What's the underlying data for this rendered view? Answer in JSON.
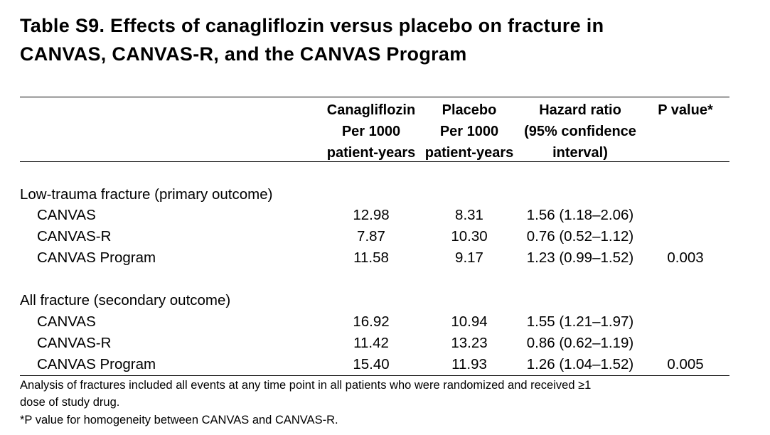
{
  "title": {
    "line1": "Table S9.  Effects of canagliflozin versus placebo on fracture in",
    "line2": "CANVAS, CANVAS-R, and the CANVAS Program"
  },
  "columns": {
    "canagliflozin": [
      "Canagliflozin",
      "Per 1000",
      "patient-years"
    ],
    "placebo": [
      "Placebo",
      "Per 1000",
      "patient-years"
    ],
    "hazard_ratio": [
      "Hazard ratio",
      "(95% confidence",
      "interval)"
    ],
    "p_value": [
      "P value*"
    ]
  },
  "sections": [
    {
      "label": "Low-trauma fracture (primary outcome)",
      "rows": [
        {
          "name": "CANVAS",
          "canagliflozin": "12.98",
          "placebo": "8.31",
          "hr": "1.56 (1.18–2.06)",
          "p": ""
        },
        {
          "name": "CANVAS-R",
          "canagliflozin": "7.87",
          "placebo": "10.30",
          "hr": "0.76 (0.52–1.12)",
          "p": ""
        },
        {
          "name": "CANVAS Program",
          "canagliflozin": "11.58",
          "placebo": "9.17",
          "hr": "1.23 (0.99–1.52)",
          "p": "0.003"
        }
      ]
    },
    {
      "label": "All fracture (secondary outcome)",
      "rows": [
        {
          "name": "CANVAS",
          "canagliflozin": "16.92",
          "placebo": "10.94",
          "hr": "1.55 (1.21–1.97)",
          "p": ""
        },
        {
          "name": "CANVAS-R",
          "canagliflozin": "11.42",
          "placebo": "13.23",
          "hr": "0.86 (0.62–1.19)",
          "p": ""
        },
        {
          "name": "CANVAS Program",
          "canagliflozin": "15.40",
          "placebo": "11.93",
          "hr": "1.26 (1.04–1.52)",
          "p": "0.005"
        }
      ]
    }
  ],
  "footnotes": {
    "line1": "Analysis of fractures included all events at any time point in all patients who were randomized and received ≥1",
    "line2": "dose of study drug.",
    "line3": "*P value for homogeneity between CANVAS and CANVAS-R."
  }
}
